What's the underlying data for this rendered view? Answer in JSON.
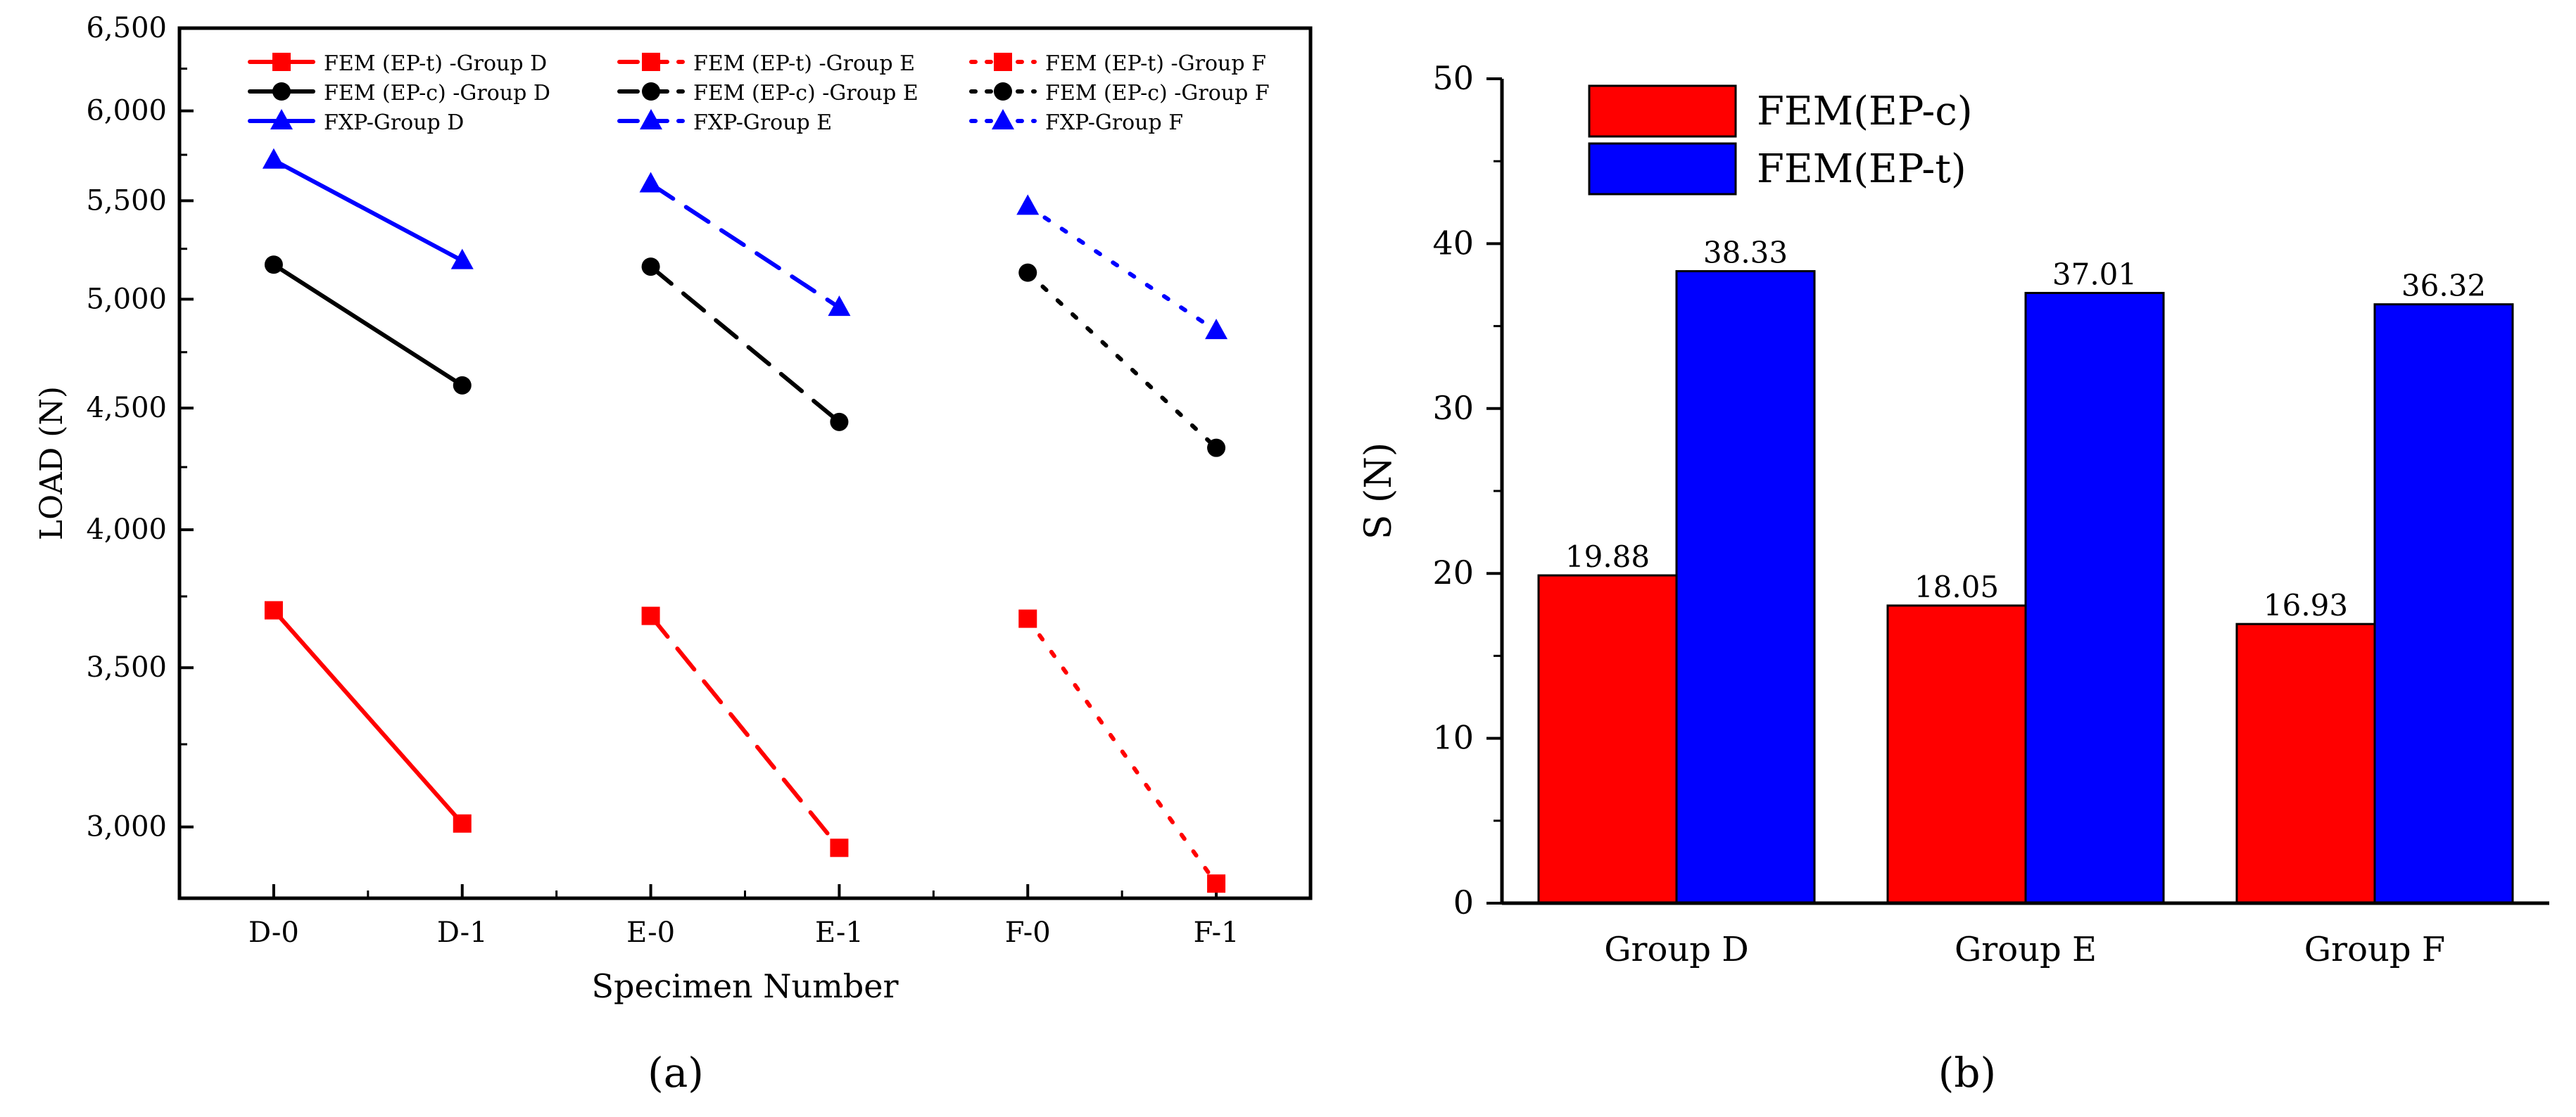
{
  "chart_data": [
    {
      "panel_label": "(a)",
      "type": "line",
      "xlabel": "Specimen Number",
      "ylabel": "LOAD (N)",
      "y_scale": "log",
      "ylim": [
        2800,
        6500
      ],
      "yticks": [
        3000,
        3500,
        4000,
        4500,
        5000,
        5500,
        6000,
        6500
      ],
      "ytick_labels": [
        "3,000",
        "3,500",
        "4,000",
        "4,500",
        "5,000",
        "5,500",
        "6,000",
        "6,500"
      ],
      "categories": [
        "D-0",
        "D-1",
        "E-0",
        "E-1",
        "F-0",
        "F-1"
      ],
      "legend_position": "top",
      "series": [
        {
          "name": "FEM (EP-t) -Group D",
          "color": "#ff0000",
          "marker": "square",
          "dash": "solid",
          "x": [
            "D-0",
            "D-1"
          ],
          "values": [
            3700,
            3010
          ]
        },
        {
          "name": "FEM (EP-c) -Group D",
          "color": "#000000",
          "marker": "circle",
          "dash": "solid",
          "x": [
            "D-0",
            "D-1"
          ],
          "values": [
            5170,
            4600
          ]
        },
        {
          "name": "FXP-Group D",
          "color": "#0000ff",
          "marker": "triangle",
          "dash": "solid",
          "x": [
            "D-0",
            "D-1"
          ],
          "values": [
            5720,
            5190
          ]
        },
        {
          "name": "FEM (EP-t) -Group E",
          "color": "#ff0000",
          "marker": "square",
          "dash": "dashed",
          "x": [
            "E-0",
            "E-1"
          ],
          "values": [
            3680,
            2940
          ]
        },
        {
          "name": "FEM (EP-c) -Group E",
          "color": "#000000",
          "marker": "circle",
          "dash": "dashed",
          "x": [
            "E-0",
            "E-1"
          ],
          "values": [
            5160,
            4440
          ]
        },
        {
          "name": "FXP-Group E",
          "color": "#0000ff",
          "marker": "triangle",
          "dash": "dashed",
          "x": [
            "E-0",
            "E-1"
          ],
          "values": [
            5590,
            4960
          ]
        },
        {
          "name": "FEM (EP-t) -Group F",
          "color": "#ff0000",
          "marker": "square",
          "dash": "dotted",
          "x": [
            "F-0",
            "F-1"
          ],
          "values": [
            3670,
            2840
          ]
        },
        {
          "name": "FEM (EP-c) -Group F",
          "color": "#000000",
          "marker": "circle",
          "dash": "dotted",
          "x": [
            "F-0",
            "F-1"
          ],
          "values": [
            5130,
            4330
          ]
        },
        {
          "name": "FXP-Group F",
          "color": "#0000ff",
          "marker": "triangle",
          "dash": "dotted",
          "x": [
            "F-0",
            "F-1"
          ],
          "values": [
            5470,
            4850
          ]
        }
      ]
    },
    {
      "panel_label": "(b)",
      "type": "bar",
      "xlabel": "",
      "ylabel": "S (N)",
      "ylim": [
        0,
        50
      ],
      "yticks": [
        0,
        10,
        20,
        30,
        40,
        50
      ],
      "ytick_labels": [
        "0",
        "10",
        "20",
        "30",
        "40",
        "50"
      ],
      "categories": [
        "Group D",
        "Group E",
        "Group F"
      ],
      "legend_position": "top-left",
      "series": [
        {
          "name": "FEM(EP-c)",
          "color": "#ff0000",
          "values": [
            19.88,
            18.05,
            16.93
          ],
          "labels": [
            "19.88",
            "18.05",
            "16.93"
          ]
        },
        {
          "name": "FEM(EP-t)",
          "color": "#0000ff",
          "values": [
            38.33,
            37.01,
            36.32
          ],
          "labels": [
            "38.33",
            "37.01",
            "36.32"
          ]
        }
      ]
    }
  ]
}
